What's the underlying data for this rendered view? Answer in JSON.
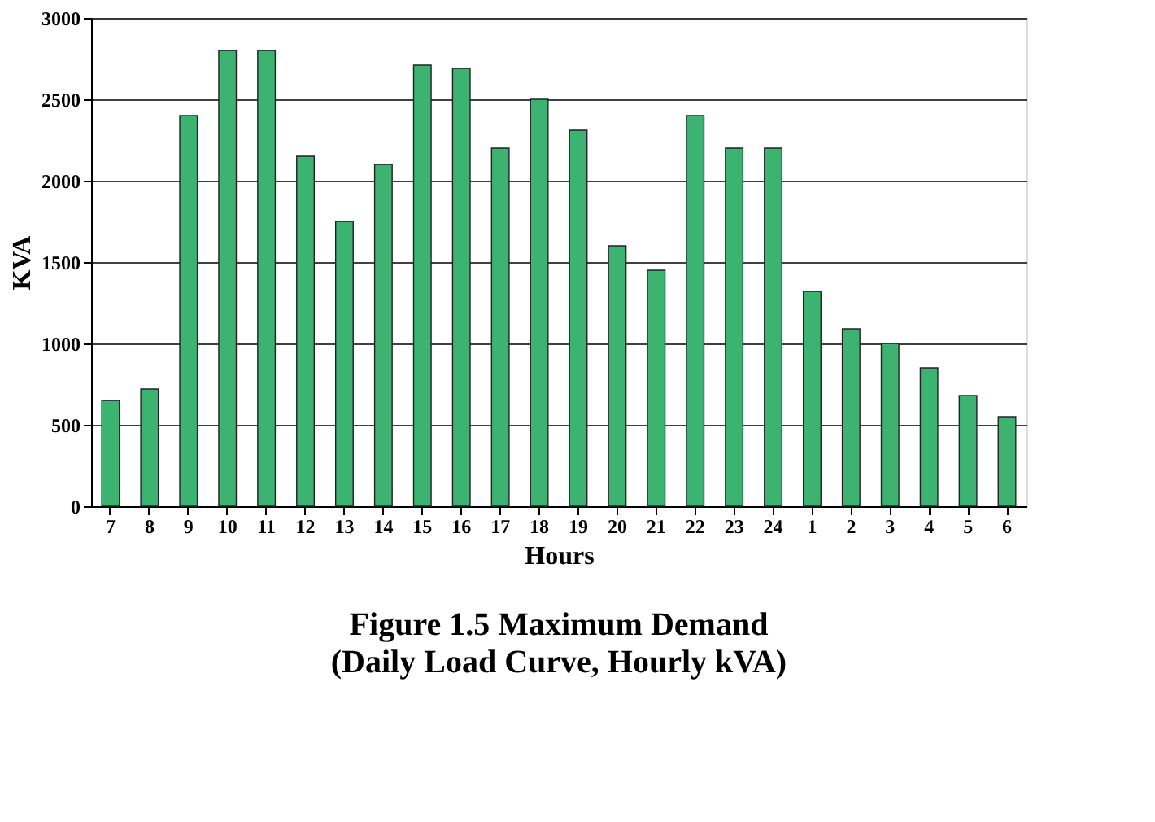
{
  "chart_data": {
    "type": "bar",
    "title": "Figure 1.5    Maximum Demand",
    "subtitle": "(Daily Load Curve, Hourly kVA)",
    "xlabel": "Hours",
    "ylabel": "KVA",
    "categories": [
      "7",
      "8",
      "9",
      "10",
      "11",
      "12",
      "13",
      "14",
      "15",
      "16",
      "17",
      "18",
      "19",
      "20",
      "21",
      "22",
      "23",
      "24",
      "1",
      "2",
      "3",
      "4",
      "5",
      "6"
    ],
    "values": [
      650,
      720,
      2400,
      2800,
      2800,
      2150,
      1750,
      2100,
      2710,
      2690,
      2200,
      2500,
      2310,
      1600,
      1450,
      2400,
      2200,
      2200,
      1320,
      1090,
      1000,
      850,
      680,
      550
    ],
    "color": "#3cb371",
    "ylim": [
      0,
      3000
    ],
    "yticks": [
      0,
      500,
      1000,
      1500,
      2000,
      2500,
      3000
    ],
    "grid": "y"
  }
}
